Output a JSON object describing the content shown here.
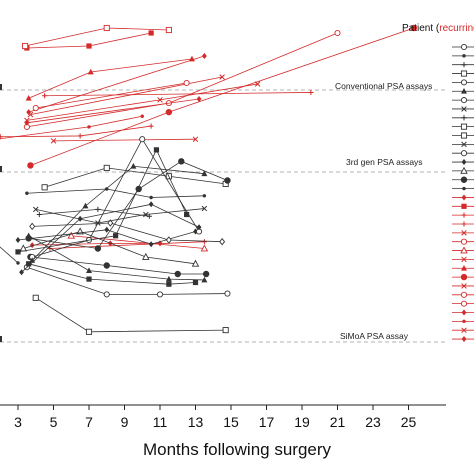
{
  "chart_data": {
    "type": "line",
    "xlabel": "Months following surgery",
    "ylabel": "",
    "xlim": [
      1,
      26.5
    ],
    "x_ticks": [
      3,
      5,
      7,
      9,
      11,
      13,
      15,
      17,
      19,
      21,
      23,
      25
    ],
    "ref_lines": [
      {
        "label": "Conventional PSA assays",
        "value": 3
      },
      {
        "label": "3rd gen PSA assays",
        "value": 2
      },
      {
        "label": "SiMoA PSA assay",
        "value": 0
      }
    ],
    "legend_title_prefix": "Patient (",
    "legend_title_red": "recurring",
    "series_groups": {
      "recurring_color": "#d42a2a",
      "nonrecurring_color": "#333333"
    },
    "series": [
      {
        "group": "recurring",
        "marker": "square",
        "points": [
          [
            3.5,
            3.42
          ],
          [
            7.0,
            3.44
          ],
          [
            10.5,
            3.57
          ]
        ]
      },
      {
        "group": "recurring",
        "marker": "square-open",
        "points": [
          [
            3.4,
            3.44
          ],
          [
            8.0,
            3.62
          ],
          [
            11.5,
            3.6
          ]
        ]
      },
      {
        "group": "recurring",
        "marker": "circle",
        "points": [
          [
            3.7,
            2.08
          ],
          [
            11.5,
            2.73
          ],
          [
            25.3,
            3.62
          ]
        ]
      },
      {
        "group": "recurring",
        "marker": "circle-open",
        "points": [
          [
            3.5,
            2.55
          ],
          [
            11.5,
            2.84
          ],
          [
            21.0,
            3.57
          ]
        ]
      },
      {
        "group": "recurring",
        "marker": "triangle",
        "points": [
          [
            3.6,
            2.9
          ],
          [
            7.1,
            3.18
          ],
          [
            12.8,
            3.31
          ]
        ]
      },
      {
        "group": "recurring",
        "marker": "diamond",
        "points": [
          [
            3.6,
            2.73
          ],
          [
            13.5,
            3.34
          ]
        ]
      },
      {
        "group": "recurring",
        "marker": "x",
        "points": [
          [
            3.7,
            2.7
          ],
          [
            14.5,
            3.13
          ]
        ]
      },
      {
        "group": "recurring",
        "marker": "plus",
        "points": [
          [
            4.5,
            2.93
          ],
          [
            19.5,
            2.97
          ]
        ]
      },
      {
        "group": "recurring",
        "marker": "x",
        "points": [
          [
            3.5,
            2.63
          ],
          [
            11.0,
            2.88
          ],
          [
            16.5,
            3.06
          ]
        ]
      },
      {
        "group": "recurring",
        "marker": "circle-open",
        "points": [
          [
            4.0,
            2.78
          ],
          [
            12.5,
            3.07
          ]
        ]
      },
      {
        "group": "recurring",
        "marker": "diamond",
        "points": [
          [
            3.5,
            2.6
          ],
          [
            13.2,
            2.89
          ]
        ]
      },
      {
        "group": "recurring",
        "marker": "dot",
        "points": [
          [
            1.8,
            2.4
          ],
          [
            7.0,
            2.55
          ],
          [
            10.0,
            2.68
          ]
        ]
      },
      {
        "group": "recurring",
        "marker": "x",
        "points": [
          [
            5.0,
            2.38
          ],
          [
            13.0,
            2.4
          ]
        ]
      },
      {
        "group": "recurring",
        "marker": "plus",
        "points": [
          [
            2.0,
            2.43
          ],
          [
            6.5,
            2.44
          ],
          [
            10.5,
            2.56
          ]
        ]
      },
      {
        "group": "recurring",
        "marker": "triangle-open",
        "points": [
          [
            6.0,
            1.25
          ],
          [
            13.5,
            1.1
          ]
        ]
      },
      {
        "group": "recurring",
        "marker": "plus",
        "points": [
          [
            4.8,
            1.1
          ],
          [
            13.5,
            1.18
          ]
        ]
      },
      {
        "group": "recurring",
        "marker": "diamond",
        "points": [
          [
            3.8,
            1.14
          ],
          [
            8.2,
            1.16
          ],
          [
            11.0,
            1.16
          ]
        ]
      },
      {
        "group": "nonrecurring",
        "marker": "square-open",
        "points": [
          [
            4.0,
            0.52
          ],
          [
            7.0,
            0.12
          ],
          [
            14.7,
            0.14
          ]
        ]
      },
      {
        "group": "nonrecurring",
        "marker": "circle-open",
        "points": [
          [
            3.5,
            0.88
          ],
          [
            8.0,
            0.56
          ],
          [
            11.0,
            0.56
          ],
          [
            14.8,
            0.57
          ]
        ]
      },
      {
        "group": "nonrecurring",
        "marker": "square",
        "points": [
          [
            3.6,
            0.92
          ],
          [
            7.0,
            0.74
          ],
          [
            11.5,
            0.68
          ],
          [
            13.0,
            0.7
          ]
        ]
      },
      {
        "group": "nonrecurring",
        "marker": "circle",
        "points": [
          [
            3.7,
            1.0
          ],
          [
            8.0,
            0.9
          ],
          [
            12.0,
            0.8
          ],
          [
            13.6,
            0.8
          ]
        ]
      },
      {
        "group": "nonrecurring",
        "marker": "triangle",
        "points": [
          [
            3.6,
            1.25
          ],
          [
            7.0,
            0.84
          ],
          [
            11.5,
            0.74
          ],
          [
            13.5,
            0.73
          ]
        ]
      },
      {
        "group": "nonrecurring",
        "marker": "triangle-open",
        "points": [
          [
            3.3,
            1.1
          ],
          [
            6.5,
            1.3
          ],
          [
            10.2,
            1.0
          ],
          [
            13.0,
            0.92
          ]
        ]
      },
      {
        "group": "nonrecurring",
        "marker": "diamond",
        "points": [
          [
            3.0,
            1.2
          ],
          [
            8.0,
            1.32
          ],
          [
            10.5,
            1.15
          ],
          [
            13.0,
            1.3
          ]
        ]
      },
      {
        "group": "nonrecurring",
        "marker": "diamond-open",
        "points": [
          [
            3.8,
            1.36
          ],
          [
            8.2,
            1.4
          ],
          [
            11.5,
            1.2
          ],
          [
            14.5,
            1.18
          ]
        ]
      },
      {
        "group": "nonrecurring",
        "marker": "x",
        "points": [
          [
            4.0,
            1.56
          ],
          [
            7.5,
            1.4
          ],
          [
            10.2,
            1.5
          ],
          [
            13.5,
            1.57
          ]
        ]
      },
      {
        "group": "nonrecurring",
        "marker": "plus",
        "points": [
          [
            4.2,
            1.5
          ],
          [
            7.5,
            1.56
          ],
          [
            10.4,
            1.48
          ]
        ]
      },
      {
        "group": "nonrecurring",
        "marker": "dot",
        "points": [
          [
            3.5,
            1.75
          ],
          [
            8.0,
            1.8
          ],
          [
            10.5,
            1.7
          ],
          [
            13.5,
            1.72
          ]
        ]
      },
      {
        "group": "nonrecurring",
        "marker": "square-open",
        "points": [
          [
            4.5,
            1.82
          ],
          [
            8.0,
            2.05
          ],
          [
            11.5,
            1.95
          ],
          [
            14.7,
            1.86
          ]
        ]
      },
      {
        "group": "nonrecurring",
        "marker": "circle-open",
        "points": [
          [
            3.8,
            1.0
          ],
          [
            7.0,
            1.2
          ],
          [
            10.0,
            2.4
          ],
          [
            13.2,
            1.3
          ]
        ]
      },
      {
        "group": "nonrecurring",
        "marker": "square",
        "points": [
          [
            3.0,
            1.06
          ],
          [
            8.5,
            1.25
          ],
          [
            10.8,
            2.27
          ],
          [
            12.5,
            1.5
          ]
        ]
      },
      {
        "group": "nonrecurring",
        "marker": "triangle",
        "points": [
          [
            3.8,
            0.96
          ],
          [
            6.8,
            1.6
          ],
          [
            9.5,
            2.07
          ],
          [
            13.5,
            1.98
          ]
        ]
      },
      {
        "group": "nonrecurring",
        "marker": "circle",
        "points": [
          [
            3.6,
            1.22
          ],
          [
            7.5,
            1.1
          ],
          [
            9.8,
            1.8
          ],
          [
            12.2,
            2.13
          ],
          [
            14.8,
            1.9
          ]
        ]
      },
      {
        "group": "nonrecurring",
        "marker": "diamond",
        "points": [
          [
            3.2,
            0.82
          ],
          [
            6.5,
            1.45
          ],
          [
            10.5,
            1.62
          ],
          [
            13.2,
            1.35
          ]
        ]
      },
      {
        "group": "nonrecurring",
        "marker": "dot",
        "points": [
          [
            1.0,
            1.3
          ],
          [
            3.0,
            0.93
          ]
        ]
      }
    ],
    "legend_markers": [
      "circle-open",
      "dot",
      "plus",
      "square-open",
      "circle-open",
      "triangle",
      "circle-open",
      "x",
      "plus",
      "square-open",
      "square-open",
      "x",
      "circle-open",
      "diamond",
      "triangle-open",
      "circle",
      "dot",
      "diamond",
      "square",
      "plus",
      "plus",
      "x",
      "circle-open",
      "triangle-open",
      "x",
      "triangle",
      "circle",
      "x",
      "circle-open",
      "circle-open",
      "diamond",
      "dot",
      "x",
      "diamond"
    ]
  }
}
